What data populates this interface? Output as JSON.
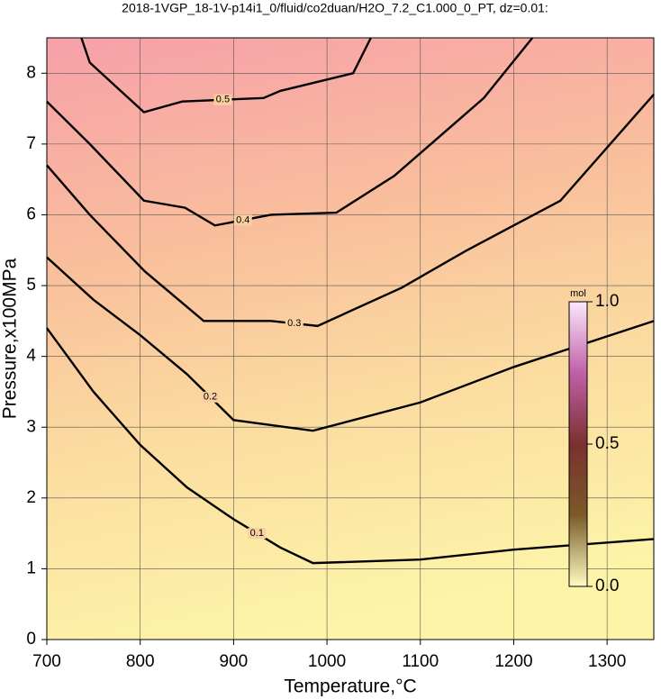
{
  "chart_data": {
    "type": "contour",
    "title": "2018-1VGP_18-1V-p14i1_0/fluid/co2duan/H2O_7.2_C1.000_0_PT, dz=0.01:",
    "x_label": "Temperature,°C",
    "y_label": "Pressure,x100MPa",
    "xlim": [
      700,
      1350
    ],
    "ylim": [
      0,
      8.5
    ],
    "xticks": [
      700,
      800,
      900,
      1000,
      1100,
      1200,
      1300
    ],
    "yticks": [
      0,
      1,
      2,
      3,
      4,
      5,
      6,
      7,
      8
    ],
    "grid": true,
    "series": [
      {
        "name": "0.1",
        "color": "#000000",
        "x": [
          700,
          750,
          800,
          850,
          900,
          950,
          985,
          1100,
          1200,
          1350
        ],
        "values": [
          4.4,
          3.5,
          2.75,
          2.15,
          1.7,
          1.3,
          1.08,
          1.13,
          1.27,
          1.42
        ]
      },
      {
        "name": "0.2",
        "color": "#000000",
        "x": [
          700,
          750,
          800,
          850,
          900,
          985,
          1100,
          1200,
          1350
        ],
        "values": [
          5.4,
          4.8,
          4.3,
          3.75,
          3.1,
          2.95,
          3.35,
          3.85,
          4.5
        ]
      },
      {
        "name": "0.3",
        "color": "#000000",
        "x": [
          700,
          746,
          805,
          868,
          940,
          990,
          1080,
          1150,
          1250,
          1350
        ],
        "values": [
          6.7,
          6.0,
          5.2,
          4.5,
          4.5,
          4.43,
          4.97,
          5.5,
          6.2,
          7.7
        ]
      },
      {
        "name": "0.4",
        "color": "#000000",
        "x": [
          700,
          746,
          804,
          848,
          880,
          940,
          1010,
          1072,
          1168,
          1220
        ],
        "values": [
          7.6,
          7.0,
          6.2,
          6.1,
          5.85,
          6.0,
          6.03,
          6.55,
          7.65,
          8.5
        ]
      },
      {
        "name": "0.5",
        "color": "#000000",
        "x": [
          737,
          746,
          804,
          845,
          932,
          950,
          1028,
          1047
        ],
        "values": [
          8.5,
          8.15,
          7.45,
          7.6,
          7.65,
          7.75,
          8.0,
          8.5
        ]
      }
    ],
    "colorbar": {
      "label": "mol",
      "lim": [
        0,
        1
      ],
      "ticks": [
        {
          "value": 0,
          "label": "0.0"
        },
        0.5,
        {
          "value": 1,
          "label": "1.0"
        }
      ]
    }
  }
}
